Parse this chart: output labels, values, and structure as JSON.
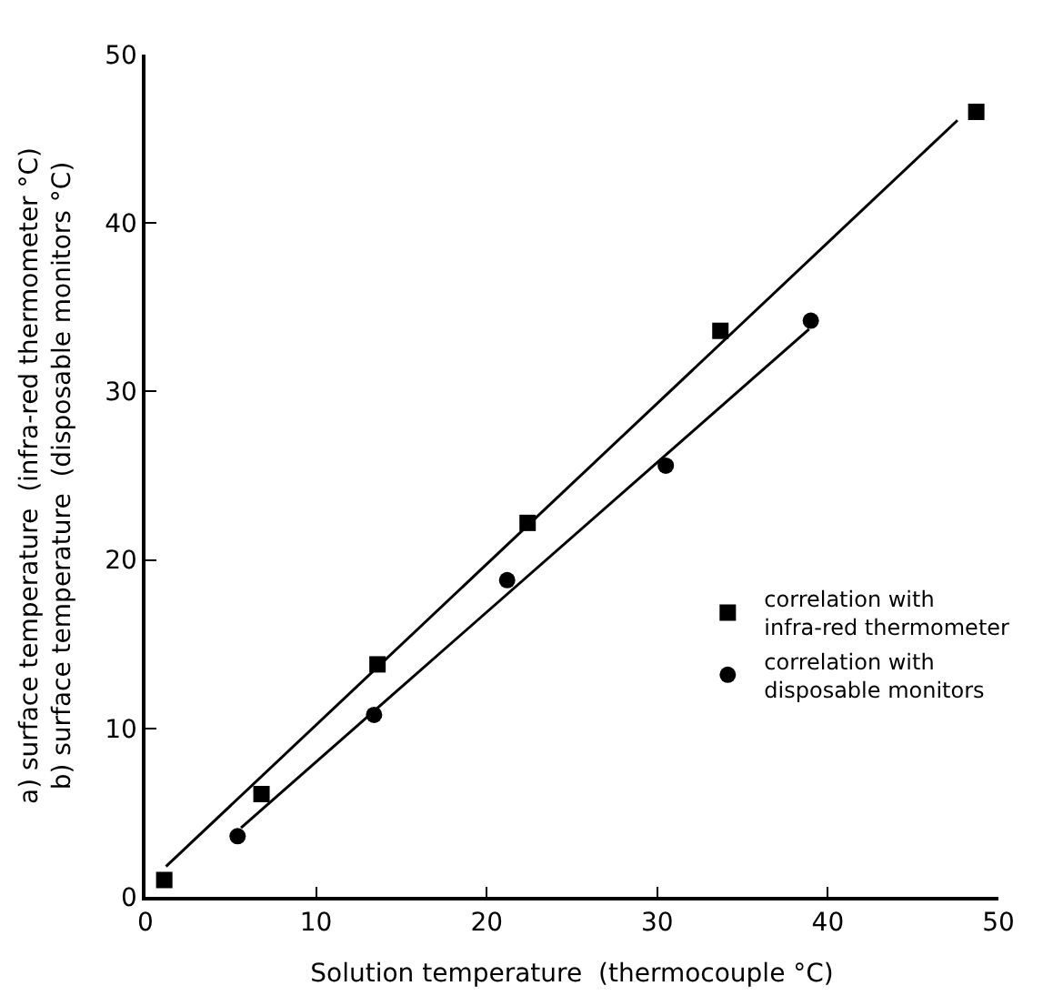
{
  "chart_data": {
    "type": "scatter",
    "xlabel": "Solution temperature  (thermocouple °C)",
    "ylabel": "a) surface temperature  (infra-red thermometer °C)\nb) surface temperature  (disposable monitors °C)",
    "xlim": [
      0,
      50
    ],
    "ylim": [
      0,
      50
    ],
    "xticks": [
      0,
      10,
      20,
      30,
      40,
      50
    ],
    "yticks": [
      0,
      10,
      20,
      30,
      40,
      50
    ],
    "legend": "right",
    "series": [
      {
        "name": "correlation with\ninfra-red thermometer",
        "color": "#000000",
        "marker": "square",
        "x": [
          1.1,
          6.8,
          13.6,
          22.4,
          33.7,
          48.7
        ],
        "values": [
          1.0,
          6.1,
          13.8,
          22.2,
          33.6,
          46.6
        ]
      },
      {
        "name": "correlation with\ndisposable monitors",
        "color": "#000000",
        "marker": "circle",
        "x": [
          5.4,
          13.4,
          21.2,
          30.5,
          39.0
        ],
        "values": [
          3.6,
          10.8,
          18.8,
          25.6,
          34.2
        ]
      },
      {
        "type": "line",
        "color": "#000000",
        "marker": "none",
        "line_style": "solid",
        "x": [
          1.2,
          47.6
        ],
        "values": [
          1.8,
          46.1
        ]
      },
      {
        "type": "line",
        "color": "#000000",
        "marker": "none",
        "line_style": "solid",
        "x": [
          5.6,
          38.9
        ],
        "values": [
          4.1,
          33.7
        ]
      }
    ]
  }
}
